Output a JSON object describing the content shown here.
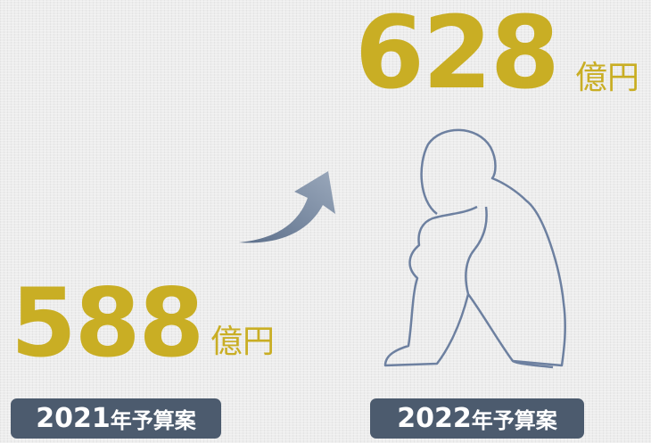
{
  "items": [
    {
      "amount": "588",
      "unit": "億円",
      "year": "2021",
      "suffix": "年予算案"
    },
    {
      "amount": "628",
      "unit": "億円",
      "year": "2022",
      "suffix": "年予算案"
    }
  ]
}
